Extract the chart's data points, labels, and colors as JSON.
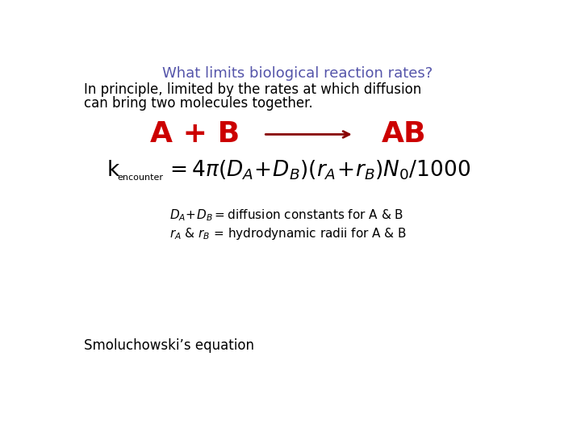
{
  "title": "What limits biological reaction rates?",
  "title_color": "#5555aa",
  "title_fontsize": 13,
  "body_text1": "In principle, limited by the rates at which diffusion",
  "body_text2": "can bring two molecules together.",
  "body_color": "#000000",
  "body_fontsize": 12,
  "reaction_color": "#cc0000",
  "reaction_fontsize": 26,
  "equation_fontsize": 19,
  "equation_sub_fontsize": 8,
  "equation_color": "#000000",
  "smoluchowski_text": "Smoluchowski’s equation",
  "smoluchowski_fontsize": 12,
  "smoluchowski_color": "#000000",
  "background_color": "#ffffff",
  "arrow_color": "#880000",
  "detail_fontsize": 11
}
